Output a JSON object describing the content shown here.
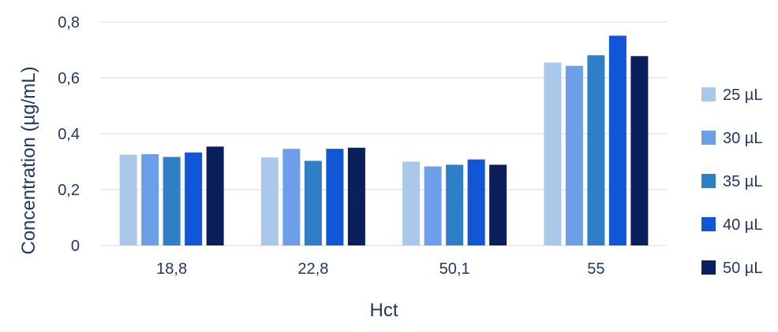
{
  "chart_data": {
    "type": "bar",
    "title": "",
    "xlabel": "Hct",
    "ylabel": "Concentration (µg/mL)",
    "categories": [
      "18,8",
      "22,8",
      "50,1",
      "55"
    ],
    "ylim": [
      0,
      0.8
    ],
    "yticks": [
      0,
      0.2,
      0.4,
      0.6,
      0.8
    ],
    "ytick_labels": [
      "0",
      "0,2",
      "0,4",
      "0,6",
      "0,8"
    ],
    "grid": true,
    "legend_position": "right",
    "series": [
      {
        "name": "25 µL",
        "color": "#a9c8ea",
        "values": [
          0.325,
          0.315,
          0.3,
          0.655
        ]
      },
      {
        "name": "30 µL",
        "color": "#6d9ee8",
        "values": [
          0.327,
          0.346,
          0.283,
          0.643
        ]
      },
      {
        "name": "35 µL",
        "color": "#2f7fc6",
        "values": [
          0.317,
          0.303,
          0.289,
          0.681
        ]
      },
      {
        "name": "40 µL",
        "color": "#1156d6",
        "values": [
          0.333,
          0.346,
          0.308,
          0.751
        ]
      },
      {
        "name": "50 µL",
        "color": "#0b1f5c",
        "values": [
          0.354,
          0.35,
          0.289,
          0.678
        ]
      }
    ]
  }
}
